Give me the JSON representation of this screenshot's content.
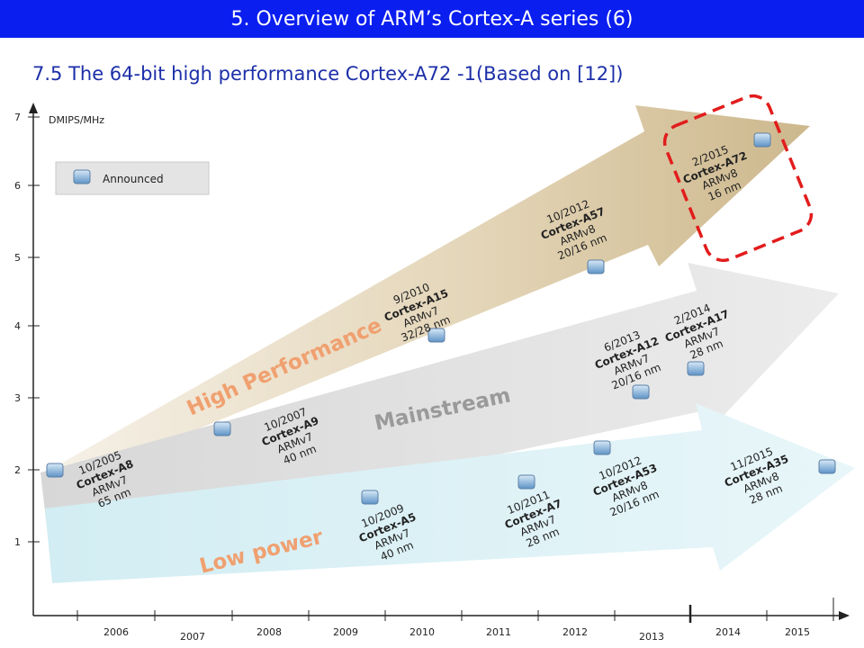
{
  "header": {
    "title": "5. Overview of ARM’s Cortex-A series (6)"
  },
  "subtitle": "7.5 The 64-bit high performance Cortex-A72 -1(Based on [12])",
  "axis": {
    "y_label": "DMIPS/MHz",
    "y_ticks": [
      "1",
      "2",
      "3",
      "4",
      "5",
      "6",
      "7"
    ],
    "x_ticks": [
      "2006",
      "2007",
      "2008",
      "2009",
      "2010",
      "2011",
      "2012",
      "2013",
      "2014",
      "2015"
    ]
  },
  "legend": {
    "label": "Announced"
  },
  "bands": {
    "high": "High Performance",
    "main": "Mainstream",
    "low": "Low power"
  },
  "cores": [
    {
      "date": "10/2005",
      "name": "Cortex-A8",
      "arch": "ARMv7",
      "node": "65 nm"
    },
    {
      "date": "10/2007",
      "name": "Cortex-A9",
      "arch": "ARMv7",
      "node": "40 nm"
    },
    {
      "date": "9/2010",
      "name": "Cortex-A15",
      "arch": "ARMv7",
      "node": "32/28 nm"
    },
    {
      "date": "10/2012",
      "name": "Cortex-A57",
      "arch": "ARMv8",
      "node": "20/16 nm"
    },
    {
      "date": "2/2015",
      "name": "Cortex-A72",
      "arch": "ARMv8",
      "node": "16 nm"
    },
    {
      "date": "6/2013",
      "name": "Cortex-A12",
      "arch": "ARMv7",
      "node": "20/16 nm"
    },
    {
      "date": "2/2014",
      "name": "Cortex-A17",
      "arch": "ARMv7",
      "node": "28 nm"
    },
    {
      "date": "10/2009",
      "name": "Cortex-A5",
      "arch": "ARMv7",
      "node": "40 nm"
    },
    {
      "date": "10/2011",
      "name": "Cortex-A7",
      "arch": "ARMv7",
      "node": "28 nm"
    },
    {
      "date": "10/2012",
      "name": "Cortex-A53",
      "arch": "ARMv8",
      "node": "20/16 nm"
    },
    {
      "date": "11/2015",
      "name": "Cortex-A35",
      "arch": "ARMv8",
      "node": "28 nm"
    }
  ],
  "colors": {
    "banner": "#0a1ef0",
    "subtitle": "#1c2fa8",
    "band_text": "#f0a070",
    "highlight": "#e21c1c"
  }
}
